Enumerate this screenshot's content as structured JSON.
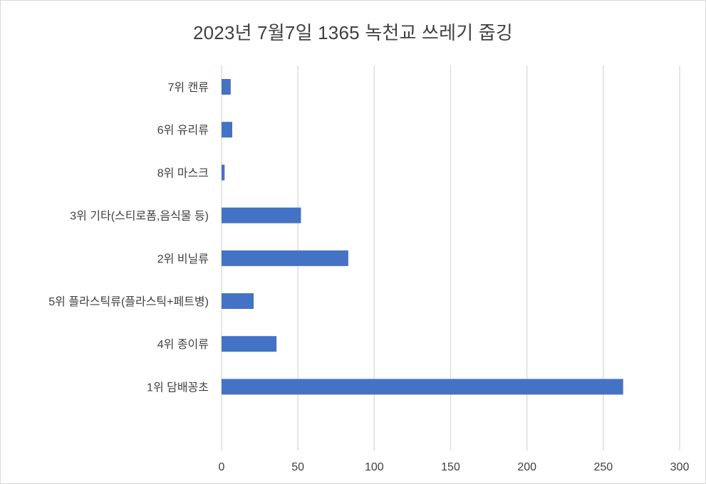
{
  "chart_data": {
    "type": "bar",
    "orientation": "horizontal",
    "title": "2023년 7월7일 1365 녹천교 쓰레기 줍깅",
    "categories": [
      "7위 캔류",
      "6위 유리류",
      "8위 마스크",
      "3위 기타(스티로폼,음식물 등)",
      "2위 비닐류",
      "5위 플라스틱류(플라스틱+페트병)",
      "4위 종이류",
      "1위 담배꽁초"
    ],
    "values": [
      6,
      7,
      2,
      52,
      83,
      21,
      36,
      263
    ],
    "xlim": [
      0,
      300
    ],
    "xticks": [
      0,
      50,
      100,
      150,
      200,
      250,
      300
    ],
    "grid": true,
    "legend": "none",
    "colors": {
      "bar": "#4472C4",
      "grid": "#d9d9d9",
      "text": "#404040"
    }
  }
}
